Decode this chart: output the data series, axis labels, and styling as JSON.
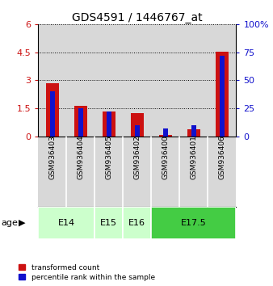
{
  "title": "GDS4591 / 1446767_at",
  "samples": [
    "GSM936403",
    "GSM936404",
    "GSM936405",
    "GSM936402",
    "GSM936400",
    "GSM936401",
    "GSM936406"
  ],
  "transformed_count": [
    2.85,
    1.62,
    1.35,
    1.25,
    0.08,
    0.38,
    4.55
  ],
  "percentile_rank": [
    40,
    25,
    22,
    10,
    7,
    10,
    72
  ],
  "left_ylim": [
    0,
    6
  ],
  "right_ylim": [
    0,
    100
  ],
  "left_yticks": [
    0,
    1.5,
    3,
    4.5,
    6
  ],
  "right_yticks": [
    0,
    25,
    50,
    75,
    100
  ],
  "left_yticklabels": [
    "0",
    "1.5",
    "3",
    "4.5",
    "6"
  ],
  "right_yticklabels": [
    "0",
    "25",
    "50",
    "75",
    "100%"
  ],
  "bar_color_red": "#cc1111",
  "bar_color_blue": "#1111cc",
  "bg_color": "#d8d8d8",
  "age_group_spans": [
    {
      "label": "E14",
      "start": 0,
      "end": 2,
      "color": "#ccffcc"
    },
    {
      "label": "E15",
      "start": 2,
      "end": 3,
      "color": "#ccffcc"
    },
    {
      "label": "E16",
      "start": 3,
      "end": 4,
      "color": "#ccffcc"
    },
    {
      "label": "E17.5",
      "start": 4,
      "end": 7,
      "color": "#44cc44"
    }
  ]
}
